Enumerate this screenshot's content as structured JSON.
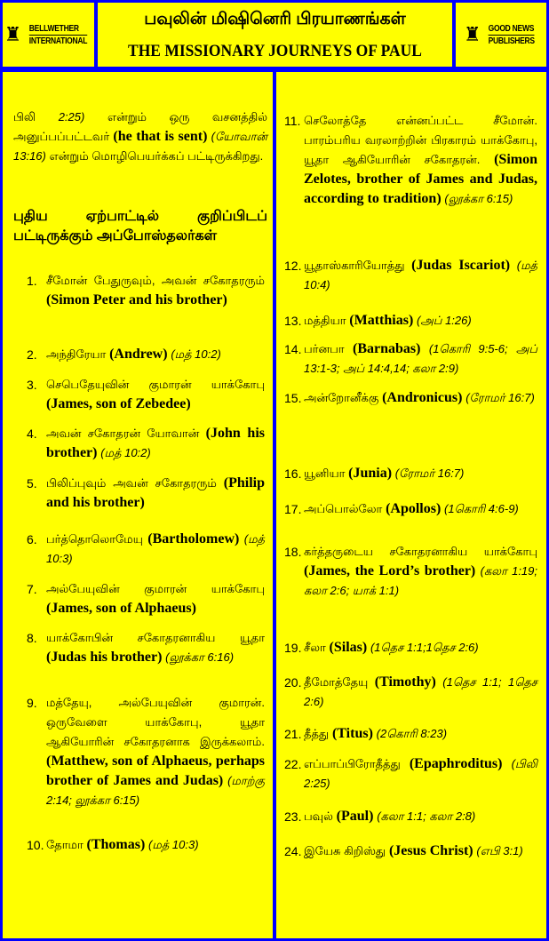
{
  "header": {
    "left_logo": {
      "line1": "BELLWETHER",
      "line2": "INTERNATIONAL",
      "icon": "bell-tower-icon"
    },
    "title_tamil": "பவுலின் மிஷினெரி பிரயாணங்கள்",
    "title_english": "THE MISSIONARY JOURNEYS OF PAUL",
    "right_logo": {
      "line1": "GOOD NEWS",
      "line2": "PUBLISHERS",
      "icon": "tower-icon"
    }
  },
  "intro": {
    "ta1": "பிலி",
    "ref1": "2:25)",
    "ta2": "என்றும் ஒரு வசனத்தில் அனுப்பப்பட்டவர்",
    "en": "(he that is sent)",
    "ref2": "(யோவான் 13:16)",
    "ta3": "என்றும் மொழிபெயர்க்கப் பட்டிருக்கிறது."
  },
  "heading": "புதிய ஏற்பாட்டில் குறிப்பிடப் பட்டிருக்கும் அப்போஸ்தலர்கள்",
  "items": [
    {
      "n": "1.",
      "ta": "சீமோன் பேதுருவும், அவன் சகோதரரும்",
      "en": "(Simon Peter and his brother)",
      "ref": ""
    },
    {
      "n": "2.",
      "ta": "அந்திரேயா",
      "en": "(Andrew)",
      "ref": "(மத் 10:2)"
    },
    {
      "n": "3.",
      "ta": "செபெதேயுவின் குமாரன் யாக்கோபு",
      "en": "(James, son of Zebedee)",
      "ref": ""
    },
    {
      "n": "4.",
      "ta": "அவன் சகோதரன் யோவான்",
      "en": "(John his brother)",
      "ref": "(மத் 10:2)"
    },
    {
      "n": "5.",
      "ta": "பிலிப்புவும் அவன் சகோதரரும்",
      "en": "(Philip and his brother)",
      "ref": ""
    },
    {
      "n": "6.",
      "ta": "பர்த்தொலொமேயு",
      "en": "(Bartholomew)",
      "ref": "(மத் 10:3)"
    },
    {
      "n": "7.",
      "ta": "அல்பேயுவின் குமாரன் யாக்கோபு",
      "en": "(James, son of Alphaeus)",
      "ref": ""
    },
    {
      "n": "8.",
      "ta": "யாக்கோபின் சகோதரனாகிய யூதா",
      "en": "(Judas his brother)",
      "ref": "(லூக்கா 6:16)"
    },
    {
      "n": "9.",
      "ta": "மத்தேயு, அல்பேயுவின் குமாரன். ஒருவேளை யாக்கோபு, யூதா ஆகியோரின் சகோதரனாக இருக்கலாம்.",
      "en": "(Matthew, son of Alphaeus, perhaps brother of James and Judas)",
      "ref": "(மாற்கு 2:14; லூக்கா 6:15)"
    },
    {
      "n": "10.",
      "ta": "தோமா",
      "en": "(Thomas)",
      "ref": "(மத் 10:3)"
    },
    {
      "n": "11.",
      "ta": "செலோத்தே என்னப்பட்ட சீமோன். பாரம்பரிய வரலாற்றின் பிரகாரம் யாக்கோபு, யூதா ஆகியோரின் சகோதரன்.",
      "en": "(Simon Zelotes, brother of James and Judas, according to tradition)",
      "ref": "(லூக்கா 6:15)"
    },
    {
      "n": "12.",
      "ta": "யூதாஸ்காரியோத்து",
      "en": "(Judas Iscariot)",
      "ref": "(மத் 10:4)"
    },
    {
      "n": "13.",
      "ta": "மத்தியா",
      "en": "(Matthias)",
      "ref": "(அப் 1:26)"
    },
    {
      "n": "14.",
      "ta": "பர்னபா",
      "en": "(Barnabas)",
      "ref": "(1கொரி 9:5-6; அப் 13:1-3; அப் 14:4,14; கலா 2:9)"
    },
    {
      "n": "15.",
      "ta": "அன்றோனீக்கு",
      "en": "(Andronicus)",
      "ref": "(ரோமர் 16:7)"
    },
    {
      "n": "16.",
      "ta": "யூனியா",
      "en": "(Junia)",
      "ref": "(ரோமர் 16:7)"
    },
    {
      "n": "17.",
      "ta": "அப்பொல்லோ",
      "en": "(Apollos)",
      "ref": "(1கொரி 4:6-9)"
    },
    {
      "n": "18.",
      "ta": "கர்த்தருடைய சகோதரனாகிய யாக்கோபு",
      "en": "(James, the Lord’s brother)",
      "ref": "(கலா 1:19; கலா 2:6; யாக் 1:1)"
    },
    {
      "n": "19.",
      "ta": "சீலா",
      "en": "(Silas)",
      "ref": "(1தெச 1:1;1தெச 2:6)"
    },
    {
      "n": "20.",
      "ta": "தீமோத்தேயு",
      "en": "(Timothy)",
      "ref": "(1தெச 1:1; 1தெச 2:6)"
    },
    {
      "n": "21.",
      "ta": "தீத்து",
      "en": "(Titus)",
      "ref": "(2கொரி 8:23)"
    },
    {
      "n": "22.",
      "ta": "எப்பாப்பிரோதீத்து",
      "en": "(Epaphroditus)",
      "ref": "(பிலி 2:25)"
    },
    {
      "n": "23.",
      "ta": "பவுல்",
      "en": "(Paul)",
      "ref": "(கலா 1:1; கலா 2:8)"
    },
    {
      "n": "24.",
      "ta": "இயேசு கிறிஸ்து",
      "en": "(Jesus Christ)",
      "ref": "(எபி 3:1)"
    }
  ],
  "colors": {
    "background": "#0000ff",
    "panel": "#ffff00",
    "text": "#000000"
  }
}
